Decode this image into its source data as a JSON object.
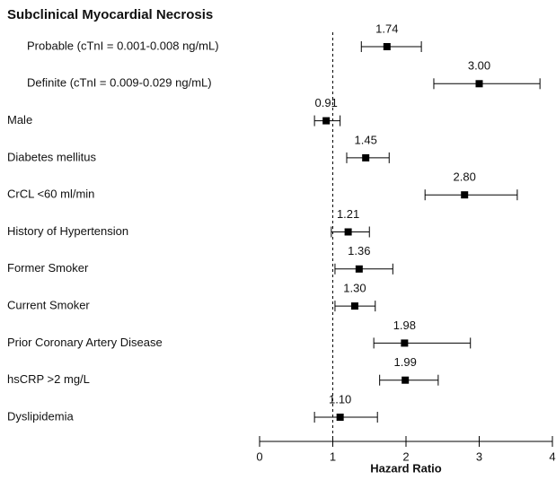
{
  "chart_data": {
    "type": "forest",
    "title": "Subclinical Myocardial Necrosis",
    "x_label": "Hazard Ratio",
    "categories": [
      "Probable (cTnI = 0.001-0.008 ng/mL)",
      "Definite (cTnI = 0.009-0.029 ng/mL)",
      "Male",
      "Diabetes mellitus",
      "CrCL <60 ml/min",
      "History of Hypertension",
      "Former Smoker",
      "Current Smoker",
      "Prior Coronary Artery Disease",
      "hsCRP >2 mg/L",
      "Dyslipidemia"
    ],
    "values": [
      1.74,
      3,
      0.91,
      1.45,
      2.8,
      1.21,
      1.36,
      1.3,
      1.98,
      1.99,
      1.1
    ],
    "value_labels": [
      "1.74",
      "3.00",
      "0.91",
      "1.45",
      "2.80",
      "1.21",
      "1.36",
      "1.30",
      "1.98",
      "1.99",
      "1.10"
    ],
    "lower": [
      1.39,
      2.38,
      0.75,
      1.19,
      2.26,
      0.98,
      1.03,
      1.03,
      1.56,
      1.64,
      0.75
    ],
    "upper": [
      2.21,
      3.83,
      1.1,
      1.77,
      3.52,
      1.5,
      1.82,
      1.58,
      2.88,
      2.44,
      1.61
    ],
    "color": "#000000",
    "reference_line": 1,
    "xlim": [
      0,
      4
    ],
    "xticks": [
      0,
      1,
      2,
      3,
      4
    ]
  }
}
